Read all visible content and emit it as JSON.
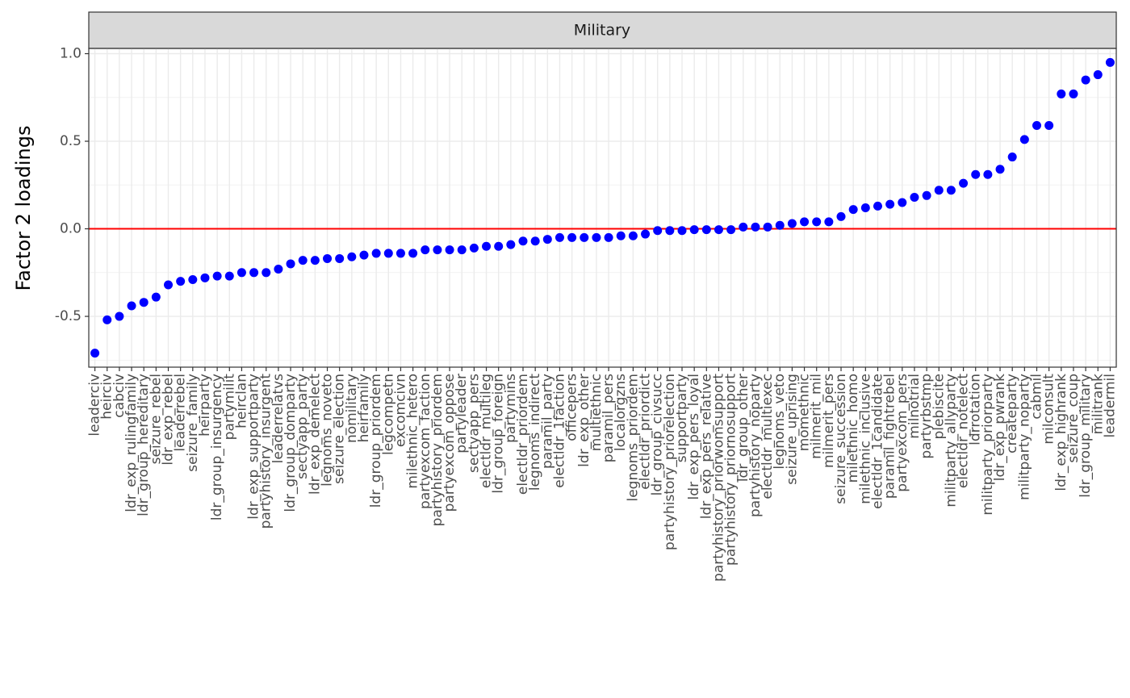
{
  "chart_data": {
    "type": "scatter",
    "facet": "Military",
    "ylabel": "Factor 2 loadings",
    "color": "#0000ff",
    "grid": true,
    "reference_line": {
      "value": 0,
      "color": "#ff0000"
    },
    "categories": [
      "leaderciv",
      "heirciv",
      "cabciv",
      "ldr_exp_rulingfamily",
      "ldr_group_hereditary",
      "seizure_rebel",
      "ldr_exp_rebel",
      "leaderrebel",
      "seizure_family",
      "heirparty",
      "ldr_group_insurgency",
      "partymilit",
      "heirclan",
      "ldr_exp_supportparty",
      "partyhistory_insurgent",
      "leaderrelatvs",
      "ldr_group_domparty",
      "sectyapp_party",
      "ldr_exp_demelect",
      "legnoms_noveto",
      "seizure_election",
      "nomilitary",
      "heirfamily",
      "ldr_group_priordem",
      "legcompetn",
      "excomcivn",
      "milethnic_hetero",
      "partyexcom_faction",
      "partyhistory_priordem",
      "partyexcom_oppose",
      "partyleader",
      "sectyapp_pers",
      "electldr_multileg",
      "ldr_group_foreign",
      "partymins",
      "electldr_priordem",
      "legnoms_indirect",
      "paramil_party",
      "electldr_1faction",
      "officepers",
      "ldr_exp_other",
      "multiethnic",
      "paramil_pers",
      "localorgzns",
      "legnoms_priordem",
      "electldr_priordict",
      "ldr_group_civsucc",
      "partyhistory_priorelection",
      "supportparty",
      "ldr_exp_pers_loyal",
      "ldr_exp_pers_relative",
      "partyhistory_priorwomsupport",
      "partyhistory_priornosupport",
      "ldr_group_other",
      "partyhistory_noparty",
      "electldr_multiexec",
      "legnoms_veto",
      "seizure_uprising",
      "momethnic",
      "milmerit_mil",
      "milmerit_pers",
      "seizure_succession",
      "milethnic_homo",
      "milethnic_inclusive",
      "electldr_1candidate",
      "paramil_fightrebel",
      "partyexcom_pers",
      "milnotrial",
      "partyrbstmp",
      "plebiscite",
      "militparty_allyparty",
      "electldr_notelect",
      "ldrrotation",
      "militparty_priorparty",
      "ldr_exp_pwrank",
      "createparty",
      "militparty_noparty",
      "cabmil",
      "milconsult",
      "ldr_exp_highrank",
      "seizure_coup",
      "ldr_group_military",
      "militrank",
      "leadermil"
    ],
    "values": [
      -0.71,
      -0.52,
      -0.5,
      -0.44,
      -0.42,
      -0.39,
      -0.32,
      -0.3,
      -0.29,
      -0.28,
      -0.27,
      -0.27,
      -0.25,
      -0.25,
      -0.25,
      -0.23,
      -0.2,
      -0.18,
      -0.18,
      -0.17,
      -0.17,
      -0.16,
      -0.15,
      -0.14,
      -0.14,
      -0.14,
      -0.14,
      -0.12,
      -0.12,
      -0.12,
      -0.12,
      -0.11,
      -0.1,
      -0.1,
      -0.09,
      -0.07,
      -0.07,
      -0.06,
      -0.05,
      -0.05,
      -0.05,
      -0.05,
      -0.05,
      -0.04,
      -0.04,
      -0.03,
      -0.01,
      -0.01,
      -0.01,
      -0.005,
      -0.005,
      -0.005,
      -0.005,
      0.01,
      0.01,
      0.01,
      0.02,
      0.03,
      0.04,
      0.04,
      0.04,
      0.07,
      0.11,
      0.12,
      0.13,
      0.14,
      0.15,
      0.18,
      0.19,
      0.22,
      0.22,
      0.26,
      0.31,
      0.31,
      0.34,
      0.41,
      0.51,
      0.59,
      0.59,
      0.77,
      0.77,
      0.85,
      0.88,
      0.95
    ],
    "ylim": [
      -0.79,
      1.03
    ],
    "yticks": [
      {
        "value": -0.5,
        "label": "-0.5"
      },
      {
        "value": 0,
        "label": "0.0"
      },
      0.5,
      {
        "value": 1,
        "label": "1.0"
      }
    ]
  }
}
